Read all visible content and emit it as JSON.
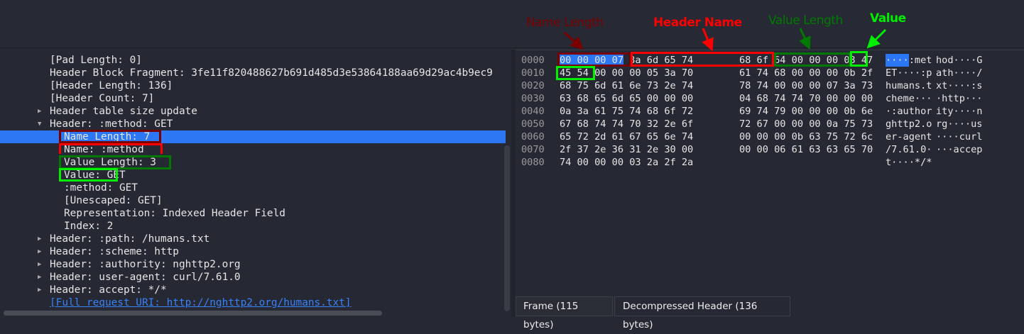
{
  "tree": [
    {
      "text": "[Pad Length: 0]",
      "indent": 2
    },
    {
      "text": "Header Block Fragment: 3fe11f820488627b691d485d3e53864188aa69d29ac4b9ec9",
      "indent": 2
    },
    {
      "text": "[Header Length: 136]",
      "indent": 2
    },
    {
      "text": "[Header Count: 7]",
      "indent": 2
    },
    {
      "text": "Header table size update",
      "indent": 2,
      "expander": "collapsed"
    },
    {
      "text": "Header: :method: GET",
      "indent": 2,
      "expander": "expanded"
    },
    {
      "text": "Name Length: 7",
      "indent": 3,
      "selected": true
    },
    {
      "text": "Name: :method",
      "indent": 3
    },
    {
      "text": "Value Length: 3",
      "indent": 3
    },
    {
      "text": "Value: GET",
      "indent": 3
    },
    {
      "text": ":method: GET",
      "indent": 3
    },
    {
      "text": "[Unescaped: GET]",
      "indent": 3
    },
    {
      "text": "Representation: Indexed Header Field",
      "indent": 3
    },
    {
      "text": "Index: 2",
      "indent": 3
    },
    {
      "text": "Header: :path: /humans.txt",
      "indent": 2,
      "expander": "collapsed"
    },
    {
      "text": "Header: :scheme: http",
      "indent": 2,
      "expander": "collapsed"
    },
    {
      "text": "Header: :authority: nghttp2.org",
      "indent": 2,
      "expander": "collapsed"
    },
    {
      "text": "Header: user-agent: curl/7.61.0",
      "indent": 2,
      "expander": "collapsed"
    },
    {
      "text": "Header: accept: */*",
      "indent": 2,
      "expander": "collapsed"
    },
    {
      "text": "[Full request URI: http://nghttp2.org/humans.txt]",
      "indent": 2,
      "link": true
    }
  ],
  "hex": [
    {
      "offset": "0000",
      "g1": "00 00 00 07 3a 6d 65 74",
      "g2": "68 6f 64 00 00 00 03 47",
      "a1": "····:met",
      "a2": "hod····G"
    },
    {
      "offset": "0010",
      "g1": "45 54 00 00 00 05 3a 70",
      "g2": "61 74 68 00 00 00 0b 2f",
      "a1": "ET····:p",
      "a2": "ath····/"
    },
    {
      "offset": "0020",
      "g1": "68 75 6d 61 6e 73 2e 74",
      "g2": "78 74 00 00 00 07 3a 73",
      "a1": "humans.t",
      "a2": "xt····:s"
    },
    {
      "offset": "0030",
      "g1": "63 68 65 6d 65 00 00 00",
      "g2": "04 68 74 74 70 00 00 00",
      "a1": "cheme···",
      "a2": "·http···"
    },
    {
      "offset": "0040",
      "g1": "0a 3a 61 75 74 68 6f 72",
      "g2": "69 74 79 00 00 00 0b 6e",
      "a1": "·:author",
      "a2": "ity····n"
    },
    {
      "offset": "0050",
      "g1": "67 68 74 74 70 32 2e 6f",
      "g2": "72 67 00 00 00 0a 75 73",
      "a1": "ghttp2.o",
      "a2": "rg····us"
    },
    {
      "offset": "0060",
      "g1": "65 72 2d 61 67 65 6e 74",
      "g2": "00 00 00 0b 63 75 72 6c",
      "a1": "er-agent",
      "a2": "····curl"
    },
    {
      "offset": "0070",
      "g1": "2f 37 2e 36 31 2e 30 00",
      "g2": "00 00 06 61 63 63 65 70",
      "a1": "/7.61.0·",
      "a2": "···accep"
    },
    {
      "offset": "0080",
      "g1": "74 00 00 00 03 2a 2f 2a",
      "g2": "",
      "a1": "t····*/*",
      "a2": ""
    }
  ],
  "annotations": {
    "name_length": {
      "label": "Name Length",
      "color": "#7a0000"
    },
    "header_name": {
      "label": "Header Name",
      "color": "#ff0000"
    },
    "value_length": {
      "label": "Value Length",
      "color": "#007a00"
    },
    "value": {
      "label": "Value",
      "color": "#00ee00"
    }
  },
  "tabs": [
    {
      "label": "Frame (115 bytes)"
    },
    {
      "label": "Decompressed Header (136 bytes)",
      "active": true
    }
  ],
  "colors": {
    "selection": "#2c77f4",
    "background": "#262833",
    "link": "#3a82f7"
  }
}
